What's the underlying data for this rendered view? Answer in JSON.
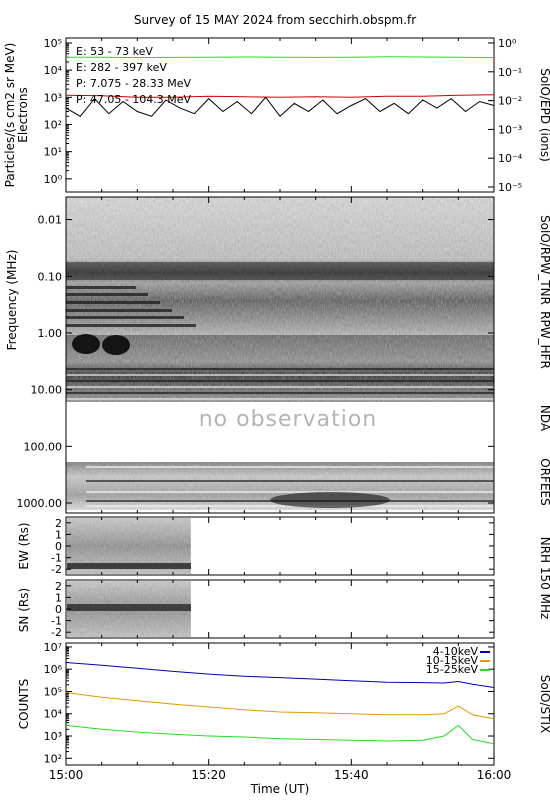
{
  "title": "Survey of 15 MAY 2024 from secchirh.obspm.fr",
  "x_axis": {
    "label": "Time (UT)",
    "ticks": [
      "15:00",
      "15:20",
      "15:40",
      "16:00"
    ],
    "range_minutes": [
      0,
      60
    ]
  },
  "panels": {
    "epd": {
      "ylabel_left": "Particles/(s cm2 sr MeV)",
      "ylabel_left2": "Electrons",
      "ylabel_right": "SolO/EPD (ions)",
      "left_ticks": [
        "10⁰",
        "10¹",
        "10²",
        "10³",
        "10⁴",
        "10⁵"
      ],
      "right_ticks": [
        "10⁻⁵",
        "10⁻⁴",
        "10⁻³",
        "10⁻²",
        "10⁻¹",
        "10⁰"
      ]
    },
    "spectrogram": {
      "ylabel_left": "Frequency (MHz)",
      "ticks": [
        "0.01",
        "0.10",
        "1.00",
        "10.00",
        "100.00",
        "1000.00"
      ],
      "instrument_tnr": "SolO/RPW_TNR",
      "instrument_hfr": "RPW_HFR",
      "instrument_nda": "NDA",
      "instrument_orfees": "ORFEES",
      "no_observation_text": "no observation"
    },
    "nrh_ew": {
      "ylabel": "EW (Rs)",
      "ticks": [
        "2",
        "1",
        "0",
        "-1",
        "-2"
      ]
    },
    "nrh_sn": {
      "ylabel": "SN (Rs)",
      "ticks": [
        "2",
        "1",
        "0",
        "-1",
        "-2"
      ]
    },
    "nrh_right_label": "NRH 150 MHz",
    "stix": {
      "ylabel_left": "COUNTS",
      "ylabel_right": "SolO/STIX",
      "ticks": [
        "10²",
        "10³",
        "10⁴",
        "10⁵",
        "10⁶",
        "10⁷"
      ]
    }
  },
  "chart_data": [
    {
      "type": "line",
      "panel": "SolO/EPD",
      "y_scale": "log",
      "ylim": [
        0.5,
        100000
      ],
      "series": [
        {
          "name": "E: 53 - 73 keV",
          "color": "#22dd22",
          "x": [
            0,
            5,
            10,
            15,
            20,
            25,
            30,
            35,
            40,
            45,
            50,
            55,
            60
          ],
          "y": [
            30000,
            30000,
            29000,
            29500,
            30000,
            30500,
            30000,
            29500,
            30000,
            31000,
            30500,
            30000,
            29000
          ]
        },
        {
          "name": "E: 282 - 397 keV",
          "color": "#cc0000",
          "x": [
            0,
            5,
            10,
            15,
            20,
            25,
            30,
            35,
            40,
            45,
            50,
            55,
            60
          ],
          "y": [
            1200,
            1150,
            1000,
            1000,
            1100,
            1050,
            1000,
            1050,
            1000,
            1100,
            1100,
            1200,
            1250
          ]
        },
        {
          "name": "P: 7.075 - 28.33 MeV",
          "color": "#000000",
          "x": [
            0,
            2,
            4,
            6,
            8,
            10,
            12,
            14,
            16,
            18,
            20,
            22,
            24,
            26,
            28,
            30,
            32,
            34,
            36,
            38,
            40,
            42,
            44,
            46,
            48,
            50,
            52,
            54,
            56,
            58,
            60
          ],
          "y": [
            400,
            200,
            900,
            250,
            700,
            300,
            200,
            800,
            400,
            250,
            900,
            300,
            700,
            250,
            1000,
            200,
            600,
            300,
            800,
            250,
            500,
            900,
            300,
            600,
            250,
            800,
            400,
            900,
            300,
            700,
            500
          ]
        },
        {
          "name": "P: 47.05 - 104.3 MeV",
          "color": "#6a0dad",
          "x": [],
          "y": []
        }
      ]
    },
    {
      "type": "heatmap",
      "panel": "Dynamic spectrum (RPW_TNR / RPW_HFR / NDA / ORFEES)",
      "y_scale": "log",
      "ylim": [
        0.004,
        1500
      ],
      "instruments": [
        "SolO/RPW_TNR",
        "RPW_HFR",
        "NDA",
        "ORFEES"
      ]
    },
    {
      "type": "heatmap",
      "panel": "NRH 150 MHz EW",
      "ylim": [
        -2.5,
        2.5
      ],
      "data_coverage_minutes": [
        0,
        17.5
      ]
    },
    {
      "type": "heatmap",
      "panel": "NRH 150 MHz SN",
      "ylim": [
        -2.5,
        2.5
      ],
      "data_coverage_minutes": [
        0,
        17.5
      ]
    },
    {
      "type": "line",
      "panel": "SolO/STIX",
      "y_scale": "log",
      "ylim": [
        50,
        15000000
      ],
      "series": [
        {
          "name": "4-10keV",
          "color": "#0000c0",
          "x": [
            0,
            5,
            10,
            15,
            20,
            25,
            30,
            35,
            40,
            45,
            50,
            53,
            55,
            57,
            60
          ],
          "y": [
            2000000,
            1500000,
            1100000,
            800000,
            600000,
            480000,
            420000,
            360000,
            300000,
            260000,
            250000,
            240000,
            280000,
            210000,
            150000
          ]
        },
        {
          "name": "10-15keV",
          "color": "#e69900",
          "x": [
            0,
            5,
            10,
            15,
            20,
            25,
            30,
            35,
            40,
            45,
            50,
            53,
            55,
            57,
            60
          ],
          "y": [
            90000,
            55000,
            38000,
            27000,
            20000,
            15000,
            12000,
            11000,
            10000,
            9000,
            9000,
            10000,
            22000,
            9000,
            6000
          ]
        },
        {
          "name": "15-25keV",
          "color": "#22dd22",
          "x": [
            0,
            5,
            10,
            15,
            20,
            25,
            30,
            35,
            40,
            45,
            50,
            53,
            55,
            57,
            60
          ],
          "y": [
            3000,
            2000,
            1500,
            1200,
            1000,
            900,
            750,
            700,
            650,
            600,
            650,
            1000,
            3000,
            700,
            450
          ]
        }
      ]
    }
  ]
}
